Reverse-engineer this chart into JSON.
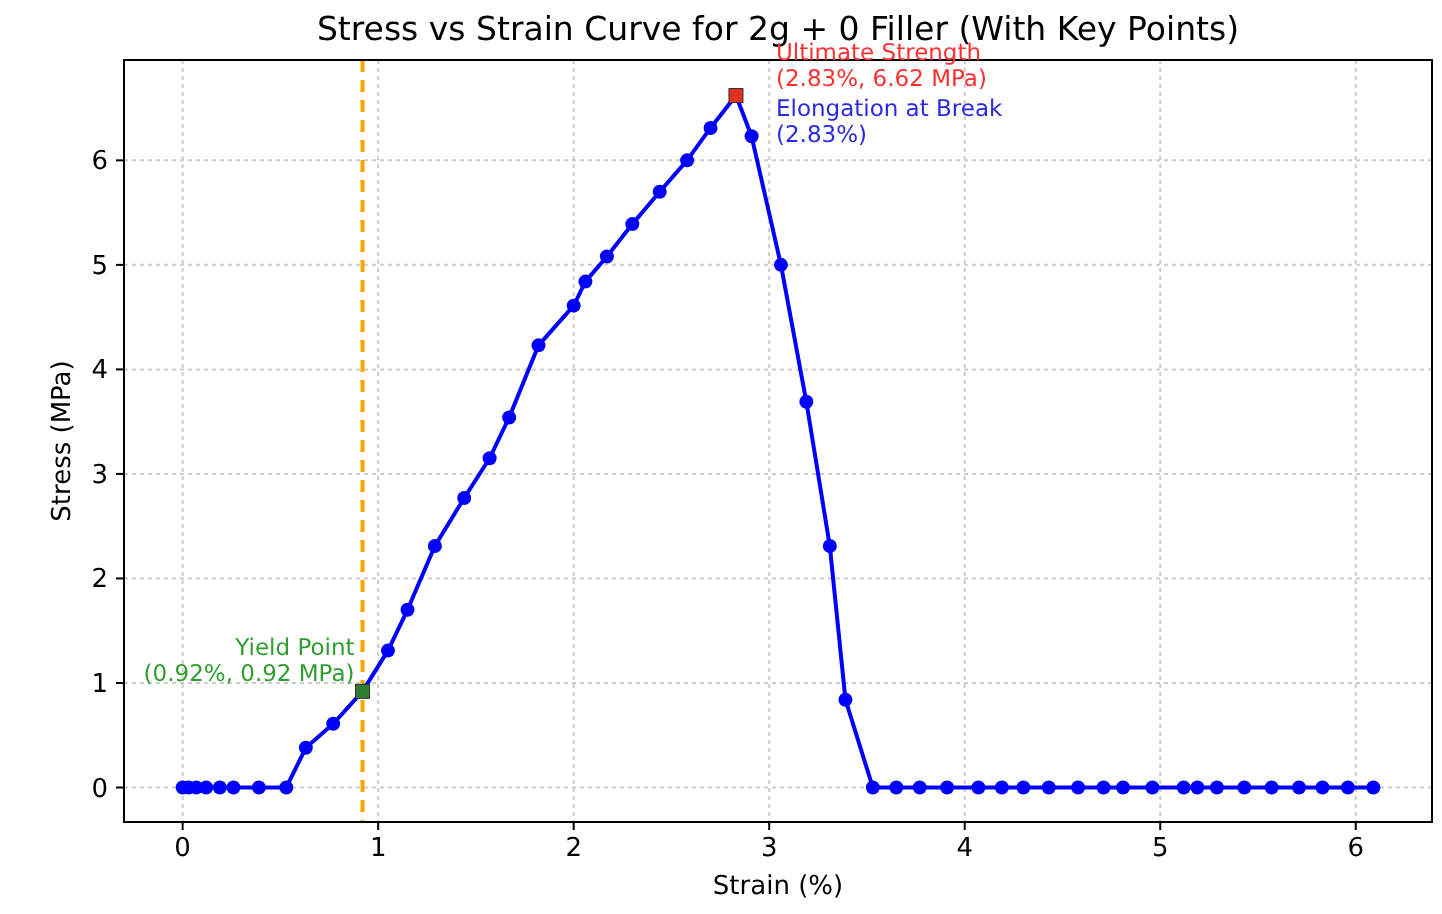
{
  "chart_data": {
    "type": "line",
    "title": "Stress vs Strain Curve for 2g + 0 Filler (With Key Points)",
    "xlabel": "Strain (%)",
    "ylabel": "Stress (MPa)",
    "series": [
      {
        "color": "#0000ff",
        "marker": "circle",
        "x": [
          0,
          0.03,
          0.07,
          0.12,
          0.19,
          0.26,
          0.39,
          0.53,
          0.63,
          0.77,
          0.92,
          1.05,
          1.15,
          1.29,
          1.44,
          1.57,
          1.67,
          1.82,
          2.0,
          2.06,
          2.17,
          2.3,
          2.44,
          2.58,
          2.7,
          2.83,
          2.91,
          3.06,
          3.19,
          3.31,
          3.39,
          3.53,
          3.65,
          3.77,
          3.91,
          4.07,
          4.19,
          4.3,
          4.43,
          4.58,
          4.71,
          4.81,
          4.96,
          5.12,
          5.19,
          5.29,
          5.43,
          5.57,
          5.71,
          5.83,
          5.96,
          6.09
        ],
        "values": [
          0,
          0,
          0,
          0,
          0,
          0,
          0,
          0,
          0.38,
          0.61,
          0.92,
          1.31,
          1.7,
          2.31,
          2.77,
          3.15,
          3.54,
          4.23,
          4.61,
          4.84,
          5.08,
          5.39,
          5.7,
          6.0,
          6.31,
          6.62,
          6.23,
          5.0,
          3.69,
          2.31,
          0.84,
          0,
          0,
          0,
          0,
          0,
          0,
          0,
          0,
          0,
          0,
          0,
          0,
          0,
          0,
          0,
          0,
          0,
          0,
          0,
          0,
          0
        ]
      },
      {
        "type": "scatter",
        "color": "#2e7d32",
        "marker": "square",
        "x": [
          0.92
        ],
        "values": [
          0.92
        ]
      },
      {
        "type": "scatter",
        "color": "#e0301e",
        "marker": "square",
        "x": [
          2.83
        ],
        "values": [
          6.62
        ]
      }
    ],
    "ref_lines": [
      {
        "axis": "x",
        "value": 0.92,
        "color": "#ffa500",
        "line_style": "dashed"
      }
    ],
    "annotations": [
      "Yield Point\n(0.92%, 0.92 MPa)",
      "Ultimate Strength\n(2.83%, 6.62 MPa)",
      "Elongation at Break\n(2.83%)"
    ],
    "xlim": [
      -0.3,
      6.39
    ],
    "ylim": [
      -0.33,
      6.96
    ],
    "xticks": [
      0,
      1,
      2,
      3,
      4,
      5,
      6
    ],
    "yticks": [
      0,
      1,
      2,
      3,
      4,
      5,
      6
    ],
    "grid": true,
    "line_style": "solid"
  }
}
